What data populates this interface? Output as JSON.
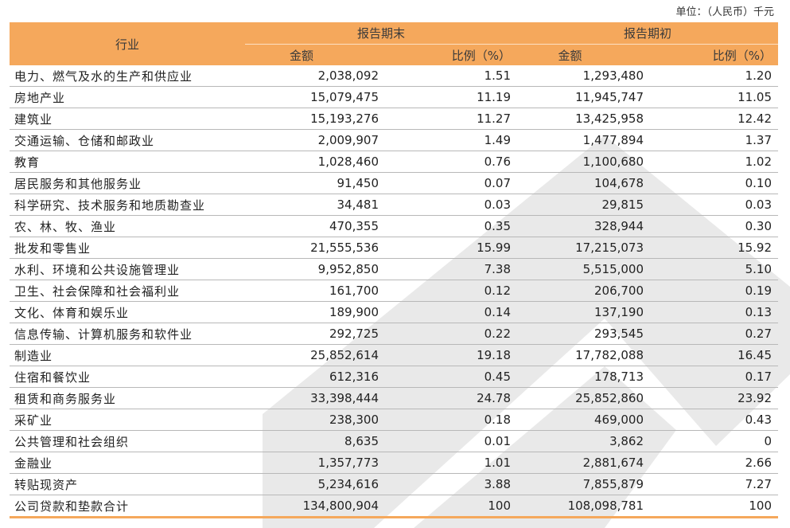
{
  "unit_label": "单位：（人民币）千元",
  "header": {
    "industry": "行业",
    "period_end": "报告期末",
    "period_start": "报告期初",
    "amount": "金额",
    "ratio": "比例（%）"
  },
  "rows": [
    {
      "name": "电力、燃气及水的生产和供应业",
      "end_amount": "2,038,092",
      "end_ratio": "1.51",
      "start_amount": "1,293,480",
      "start_ratio": "1.20"
    },
    {
      "name": "房地产业",
      "end_amount": "15,079,475",
      "end_ratio": "11.19",
      "start_amount": "11,945,747",
      "start_ratio": "11.05"
    },
    {
      "name": "建筑业",
      "end_amount": "15,193,276",
      "end_ratio": "11.27",
      "start_amount": "13,425,958",
      "start_ratio": "12.42"
    },
    {
      "name": "交通运输、仓储和邮政业",
      "end_amount": "2,009,907",
      "end_ratio": "1.49",
      "start_amount": "1,477,894",
      "start_ratio": "1.37"
    },
    {
      "name": "教育",
      "end_amount": "1,028,460",
      "end_ratio": "0.76",
      "start_amount": "1,100,680",
      "start_ratio": "1.02"
    },
    {
      "name": "居民服务和其他服务业",
      "end_amount": "91,450",
      "end_ratio": "0.07",
      "start_amount": "104,678",
      "start_ratio": "0.10"
    },
    {
      "name": "科学研究、技术服务和地质勘查业",
      "end_amount": "34,481",
      "end_ratio": "0.03",
      "start_amount": "29,815",
      "start_ratio": "0.03"
    },
    {
      "name": "农、林、牧、渔业",
      "end_amount": "470,355",
      "end_ratio": "0.35",
      "start_amount": "328,944",
      "start_ratio": "0.30"
    },
    {
      "name": "批发和零售业",
      "end_amount": "21,555,536",
      "end_ratio": "15.99",
      "start_amount": "17,215,073",
      "start_ratio": "15.92"
    },
    {
      "name": "水利、环境和公共设施管理业",
      "end_amount": "9,952,850",
      "end_ratio": "7.38",
      "start_amount": "5,515,000",
      "start_ratio": "5.10"
    },
    {
      "name": "卫生、社会保障和社会福利业",
      "end_amount": "161,700",
      "end_ratio": "0.12",
      "start_amount": "206,700",
      "start_ratio": "0.19"
    },
    {
      "name": "文化、体育和娱乐业",
      "end_amount": "189,900",
      "end_ratio": "0.14",
      "start_amount": "137,190",
      "start_ratio": "0.13"
    },
    {
      "name": "信息传输、计算机服务和软件业",
      "end_amount": "292,725",
      "end_ratio": "0.22",
      "start_amount": "293,545",
      "start_ratio": "0.27"
    },
    {
      "name": "制造业",
      "end_amount": "25,852,614",
      "end_ratio": "19.18",
      "start_amount": "17,782,088",
      "start_ratio": "16.45"
    },
    {
      "name": "住宿和餐饮业",
      "end_amount": "612,316",
      "end_ratio": "0.45",
      "start_amount": "178,713",
      "start_ratio": "0.17"
    },
    {
      "name": "租赁和商务服务业",
      "end_amount": "33,398,444",
      "end_ratio": "24.78",
      "start_amount": "25,852,860",
      "start_ratio": "23.92"
    },
    {
      "name": "采矿业",
      "end_amount": "238,300",
      "end_ratio": "0.18",
      "start_amount": "469,000",
      "start_ratio": "0.43"
    },
    {
      "name": "公共管理和社会组织",
      "end_amount": "8,635",
      "end_ratio": "0.01",
      "start_amount": "3,862",
      "start_ratio": "0"
    },
    {
      "name": "金融业",
      "end_amount": "1,357,773",
      "end_ratio": "1.01",
      "start_amount": "2,881,674",
      "start_ratio": "2.66"
    },
    {
      "name": "转贴现资产",
      "end_amount": "5,234,616",
      "end_ratio": "3.88",
      "start_amount": "7,855,879",
      "start_ratio": "7.27"
    },
    {
      "name": "公司贷款和垫款合计",
      "end_amount": "134,800,904",
      "end_ratio": "100",
      "start_amount": "108,098,781",
      "start_ratio": "100"
    }
  ],
  "colors": {
    "header_bg": "#f5a85c",
    "watermark": "#e6e6e6"
  }
}
